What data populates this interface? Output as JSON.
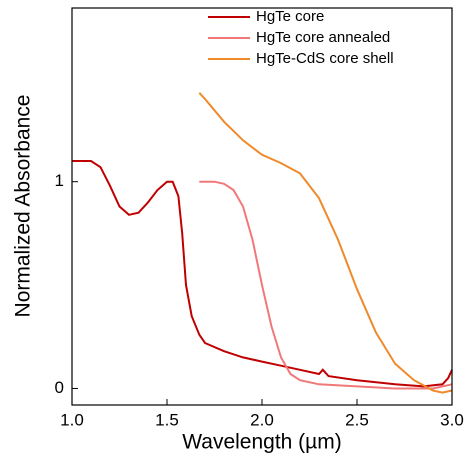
{
  "chart_data": {
    "type": "line",
    "x_label": "Wavelength (µm)",
    "y_label": "Normalized Absorbance",
    "xlim": [
      1.0,
      3.0
    ],
    "ylim": [
      -0.08,
      1.84
    ],
    "xticks": [
      {
        "value": 1.0,
        "label": "1.0"
      },
      {
        "value": 1.5,
        "label": "1.5"
      },
      {
        "value": 2.0,
        "label": "2.0"
      },
      {
        "value": 2.5,
        "label": "2.5"
      },
      {
        "value": 3.0,
        "label": "3.0"
      }
    ],
    "yticks": [
      0,
      1
    ],
    "legend": "upper right",
    "series": [
      {
        "name": "HgTe core",
        "color": "#c00000",
        "x": [
          1.0,
          1.1,
          1.15,
          1.2,
          1.25,
          1.3,
          1.35,
          1.4,
          1.45,
          1.5,
          1.53,
          1.56,
          1.58,
          1.6,
          1.63,
          1.67,
          1.7,
          1.8,
          1.9,
          2.0,
          2.1,
          2.2,
          2.3,
          2.32,
          2.35,
          2.5,
          2.7,
          2.85,
          2.95,
          2.98,
          3.0
        ],
        "values": [
          1.1,
          1.1,
          1.07,
          0.98,
          0.88,
          0.84,
          0.85,
          0.9,
          0.96,
          1.0,
          1.0,
          0.93,
          0.75,
          0.5,
          0.35,
          0.26,
          0.22,
          0.18,
          0.15,
          0.13,
          0.11,
          0.09,
          0.07,
          0.09,
          0.06,
          0.04,
          0.02,
          0.01,
          0.02,
          0.05,
          0.09
        ]
      },
      {
        "name": "HgTe core annealed",
        "color": "#f07878",
        "x": [
          1.67,
          1.75,
          1.8,
          1.85,
          1.9,
          1.95,
          2.0,
          2.05,
          2.1,
          2.15,
          2.2,
          2.3,
          2.5,
          2.7,
          2.9,
          3.0
        ],
        "values": [
          1.0,
          1.0,
          0.99,
          0.96,
          0.88,
          0.72,
          0.5,
          0.3,
          0.15,
          0.07,
          0.04,
          0.02,
          0.01,
          0.0,
          0.0,
          0.02
        ]
      },
      {
        "name": "HgTe-CdS core shell",
        "color": "#ee8a2a",
        "x": [
          1.67,
          1.7,
          1.8,
          1.9,
          2.0,
          2.1,
          2.2,
          2.3,
          2.4,
          2.5,
          2.6,
          2.7,
          2.8,
          2.9,
          2.95,
          3.0
        ],
        "values": [
          1.43,
          1.4,
          1.29,
          1.2,
          1.13,
          1.09,
          1.04,
          0.92,
          0.72,
          0.48,
          0.27,
          0.12,
          0.04,
          -0.01,
          -0.02,
          -0.01
        ]
      }
    ]
  }
}
